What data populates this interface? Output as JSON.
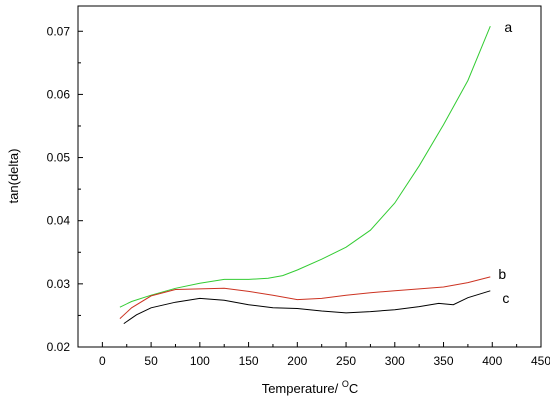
{
  "chart_data": {
    "type": "line",
    "title": "",
    "xlabel": "Temperature/ ",
    "xlabel_super": "O",
    "xlabel_unit": "C",
    "ylabel": "tan(delta)",
    "xlim": [
      -25,
      450
    ],
    "ylim": [
      0.02,
      0.074
    ],
    "xticks": [
      0,
      50,
      100,
      150,
      200,
      250,
      300,
      350,
      400,
      450
    ],
    "yticks": [
      0.02,
      0.03,
      0.04,
      0.05,
      0.06,
      0.07
    ],
    "ytick_labels": [
      "0.02",
      "0.03",
      "0.04",
      "0.05",
      "0.06",
      "0.07"
    ],
    "grid": false,
    "series": [
      {
        "name": "a",
        "color": "#33cc33",
        "x": [
          18,
          30,
          50,
          75,
          100,
          125,
          150,
          170,
          185,
          200,
          225,
          250,
          275,
          300,
          325,
          350,
          375,
          398
        ],
        "y": [
          0.0263,
          0.0272,
          0.0282,
          0.0293,
          0.0301,
          0.0307,
          0.0307,
          0.0309,
          0.0313,
          0.0322,
          0.0339,
          0.0358,
          0.0385,
          0.0428,
          0.0487,
          0.0552,
          0.0622,
          0.0708
        ]
      },
      {
        "name": "b",
        "color": "#cc3322",
        "x": [
          18,
          30,
          50,
          75,
          100,
          125,
          150,
          175,
          200,
          225,
          250,
          275,
          300,
          325,
          350,
          375,
          398
        ],
        "y": [
          0.0245,
          0.0262,
          0.0281,
          0.0291,
          0.0292,
          0.0293,
          0.0288,
          0.0282,
          0.0275,
          0.0277,
          0.0282,
          0.0286,
          0.0289,
          0.0292,
          0.0295,
          0.0302,
          0.0311
        ]
      },
      {
        "name": "c",
        "color": "#000000",
        "x": [
          22,
          35,
          50,
          75,
          100,
          125,
          150,
          175,
          200,
          225,
          250,
          275,
          300,
          325,
          345,
          360,
          375,
          398
        ],
        "y": [
          0.0237,
          0.0251,
          0.0262,
          0.0271,
          0.0277,
          0.0274,
          0.0267,
          0.0262,
          0.0261,
          0.0257,
          0.0254,
          0.0256,
          0.0259,
          0.0264,
          0.0269,
          0.0267,
          0.0278,
          0.0289
        ]
      }
    ]
  }
}
